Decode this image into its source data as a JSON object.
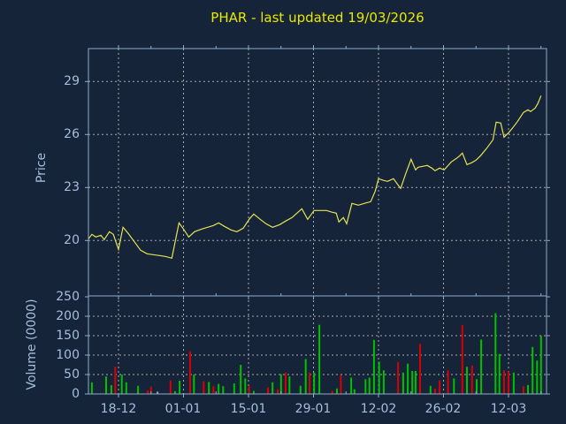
{
  "title": "PHAR - last updated 19/03/2026",
  "colors": {
    "background": "#152438",
    "frame": "#8fadcd",
    "label": "#a5bedc",
    "title_text": "#e8e800",
    "grid": "#aaaaaa",
    "price_line": "#e3e354",
    "volume_up": "#00c000",
    "volume_down": "#d80000",
    "volume_neutral": "#8ca6c8"
  },
  "price_axis": {
    "label": "Price",
    "ticks": [
      "29",
      "26",
      "23",
      "20"
    ]
  },
  "volume_axis": {
    "label": "Volume (0000)",
    "ticks": [
      "250",
      "200",
      "150",
      "100",
      "50",
      "0"
    ]
  },
  "date_axis": {
    "labels": [
      "18-12",
      "01-01",
      "15-01",
      "29-01",
      "12-02",
      "26-02",
      "12-03"
    ]
  },
  "chart_data": [
    {
      "type": "line",
      "name": "PHAR price",
      "title": "PHAR - last updated 19/03/2026",
      "ylabel": "Price",
      "yticks": [
        20,
        23,
        26,
        29
      ],
      "ylim": [
        16.85,
        30.9
      ],
      "x_unit": "date-axis position: 0 = 18-12, 1 = 01-01, 2 = 15-01, 3 = 29-01, 4 = 12-02, 5 = 26-02, 6 = 12-03 (14 days per unit)",
      "xlim": [
        -0.46,
        6.59
      ],
      "grid": true,
      "legend": false,
      "points": [
        [
          -0.46,
          20.1
        ],
        [
          -0.41,
          20.35
        ],
        [
          -0.35,
          20.2
        ],
        [
          -0.27,
          20.3
        ],
        [
          -0.22,
          20.05
        ],
        [
          -0.14,
          20.5
        ],
        [
          -0.08,
          20.35
        ],
        [
          0,
          19.5
        ],
        [
          0.07,
          20.75
        ],
        [
          0.15,
          20.4
        ],
        [
          0.25,
          19.9
        ],
        [
          0.34,
          19.45
        ],
        [
          0.44,
          19.25
        ],
        [
          0.53,
          19.2
        ],
        [
          0.63,
          19.15
        ],
        [
          0.72,
          19.1
        ],
        [
          0.82,
          19.0
        ],
        [
          0.93,
          21.0
        ],
        [
          1.01,
          20.6
        ],
        [
          1.08,
          20.2
        ],
        [
          1.17,
          20.5
        ],
        [
          1.28,
          20.65
        ],
        [
          1.37,
          20.75
        ],
        [
          1.46,
          20.85
        ],
        [
          1.54,
          21.0
        ],
        [
          1.63,
          20.8
        ],
        [
          1.73,
          20.6
        ],
        [
          1.82,
          20.5
        ],
        [
          1.92,
          20.7
        ],
        [
          2.01,
          21.2
        ],
        [
          2.08,
          21.5
        ],
        [
          2.18,
          21.2
        ],
        [
          2.27,
          20.95
        ],
        [
          2.37,
          20.75
        ],
        [
          2.48,
          20.9
        ],
        [
          2.57,
          21.1
        ],
        [
          2.67,
          21.3
        ],
        [
          2.76,
          21.6
        ],
        [
          2.82,
          21.8
        ],
        [
          2.91,
          21.2
        ],
        [
          2.95,
          21.4
        ],
        [
          3.01,
          21.7
        ],
        [
          3.1,
          21.7
        ],
        [
          3.2,
          21.7
        ],
        [
          3.29,
          21.6
        ],
        [
          3.35,
          21.55
        ],
        [
          3.39,
          21.05
        ],
        [
          3.46,
          21.3
        ],
        [
          3.51,
          20.95
        ],
        [
          3.59,
          22.1
        ],
        [
          3.69,
          22.0
        ],
        [
          3.78,
          22.1
        ],
        [
          3.88,
          22.2
        ],
        [
          3.95,
          22.8
        ],
        [
          4.0,
          23.5
        ],
        [
          4.08,
          23.4
        ],
        [
          4.14,
          23.35
        ],
        [
          4.23,
          23.5
        ],
        [
          4.34,
          22.95
        ],
        [
          4.42,
          23.8
        ],
        [
          4.5,
          24.6
        ],
        [
          4.57,
          24.0
        ],
        [
          4.61,
          24.15
        ],
        [
          4.68,
          24.2
        ],
        [
          4.75,
          24.25
        ],
        [
          4.82,
          24.1
        ],
        [
          4.87,
          23.95
        ],
        [
          4.94,
          24.1
        ],
        [
          5.01,
          24.0
        ],
        [
          5.12,
          24.45
        ],
        [
          5.2,
          24.65
        ],
        [
          5.25,
          24.8
        ],
        [
          5.29,
          24.95
        ],
        [
          5.36,
          24.3
        ],
        [
          5.43,
          24.4
        ],
        [
          5.5,
          24.55
        ],
        [
          5.57,
          24.8
        ],
        [
          5.66,
          25.2
        ],
        [
          5.76,
          25.7
        ],
        [
          5.81,
          26.7
        ],
        [
          5.88,
          26.65
        ],
        [
          5.93,
          25.85
        ],
        [
          6.0,
          26.1
        ],
        [
          6.07,
          26.4
        ],
        [
          6.14,
          26.75
        ],
        [
          6.23,
          27.25
        ],
        [
          6.3,
          27.4
        ],
        [
          6.34,
          27.3
        ],
        [
          6.41,
          27.5
        ],
        [
          6.45,
          27.75
        ],
        [
          6.5,
          28.2
        ]
      ]
    },
    {
      "type": "bar",
      "name": "Volume",
      "ylabel": "Volume (0000)",
      "yticks": [
        0,
        50,
        100,
        150,
        200,
        250
      ],
      "ylim": [
        0,
        250
      ],
      "x_unit": "same date-axis positions as price series",
      "color_key": {
        "g": "up/green",
        "r": "down/red",
        "b": "neutral/blue"
      },
      "bars": [
        [
          -0.41,
          30,
          "g"
        ],
        [
          -0.19,
          45,
          "g"
        ],
        [
          -0.11,
          23,
          "g"
        ],
        [
          -0.05,
          70,
          "r"
        ],
        [
          0.05,
          50,
          "g"
        ],
        [
          0.12,
          30,
          "g"
        ],
        [
          0.3,
          21,
          "g"
        ],
        [
          0.45,
          9,
          "r"
        ],
        [
          0.5,
          19,
          "r"
        ],
        [
          0.6,
          6,
          "b"
        ],
        [
          0.8,
          35,
          "r"
        ],
        [
          0.87,
          7,
          "g"
        ],
        [
          0.94,
          34,
          "g"
        ],
        [
          1.1,
          110,
          "r"
        ],
        [
          1.16,
          50,
          "g"
        ],
        [
          1.31,
          33,
          "r"
        ],
        [
          1.39,
          31,
          "g"
        ],
        [
          1.46,
          20,
          "r"
        ],
        [
          1.54,
          26,
          "g"
        ],
        [
          1.61,
          20,
          "g"
        ],
        [
          1.78,
          27,
          "g"
        ],
        [
          1.88,
          75,
          "g"
        ],
        [
          1.95,
          40,
          "g"
        ],
        [
          2.01,
          21,
          "r"
        ],
        [
          2.08,
          8,
          "g"
        ],
        [
          2.3,
          17,
          "r"
        ],
        [
          2.37,
          30,
          "g"
        ],
        [
          2.45,
          12,
          "r"
        ],
        [
          2.5,
          51,
          "g"
        ],
        [
          2.57,
          55,
          "r"
        ],
        [
          2.63,
          45,
          "g"
        ],
        [
          2.8,
          21,
          "g"
        ],
        [
          2.88,
          90,
          "g"
        ],
        [
          2.94,
          55,
          "r"
        ],
        [
          3.01,
          55,
          "g"
        ],
        [
          3.09,
          178,
          "g"
        ],
        [
          3.29,
          8,
          "r"
        ],
        [
          3.36,
          14,
          "g"
        ],
        [
          3.42,
          48,
          "r"
        ],
        [
          3.58,
          42,
          "g"
        ],
        [
          3.63,
          12,
          "g"
        ],
        [
          3.8,
          38,
          "g"
        ],
        [
          3.86,
          42,
          "g"
        ],
        [
          3.93,
          139,
          "g"
        ],
        [
          4.01,
          83,
          "g"
        ],
        [
          4.08,
          61,
          "g"
        ],
        [
          4.3,
          82,
          "r"
        ],
        [
          4.38,
          55,
          "g"
        ],
        [
          4.45,
          78,
          "g"
        ],
        [
          4.52,
          59,
          "g"
        ],
        [
          4.57,
          59,
          "g"
        ],
        [
          4.64,
          129,
          "r"
        ],
        [
          4.8,
          21,
          "g"
        ],
        [
          4.87,
          14,
          "r"
        ],
        [
          4.94,
          35,
          "r"
        ],
        [
          5.07,
          61,
          "r"
        ],
        [
          5.16,
          40,
          "g"
        ],
        [
          5.29,
          178,
          "r"
        ],
        [
          5.36,
          70,
          "g"
        ],
        [
          5.44,
          73,
          "r"
        ],
        [
          5.51,
          38,
          "g"
        ],
        [
          5.58,
          140,
          "g"
        ],
        [
          5.8,
          208,
          "g"
        ],
        [
          5.86,
          103,
          "g"
        ],
        [
          5.93,
          61,
          "r"
        ],
        [
          6.0,
          58,
          "r"
        ],
        [
          6.08,
          55,
          "g"
        ],
        [
          6.23,
          20,
          "r"
        ],
        [
          6.3,
          23,
          "g"
        ],
        [
          6.37,
          121,
          "g"
        ],
        [
          6.44,
          86,
          "g"
        ],
        [
          6.5,
          149,
          "g"
        ]
      ]
    }
  ]
}
